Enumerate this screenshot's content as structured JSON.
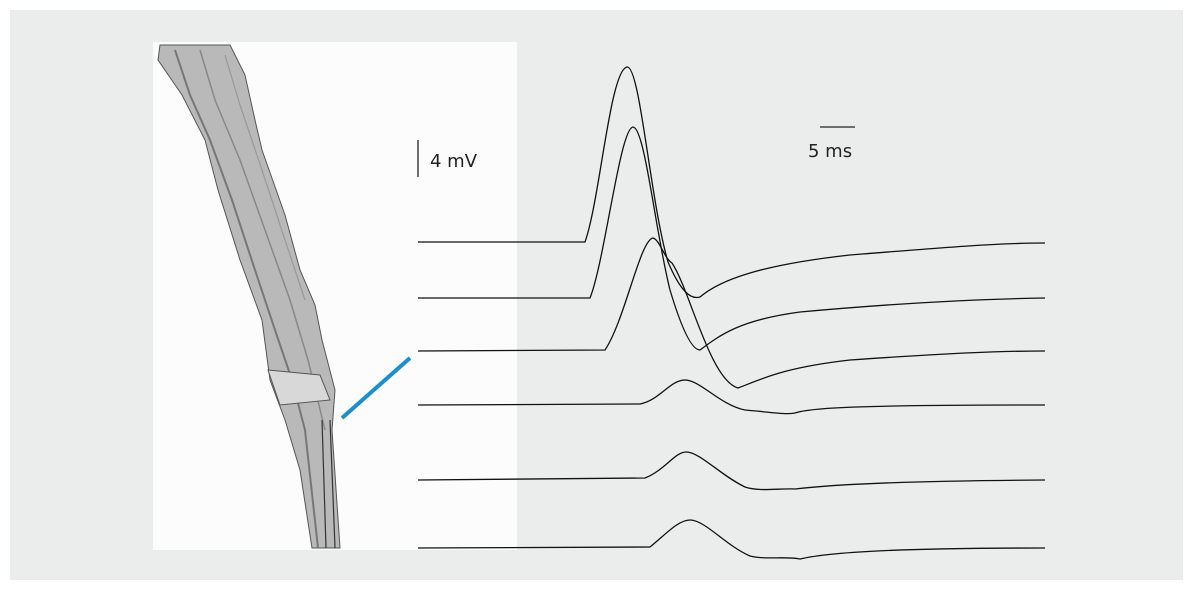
{
  "scale_bars": {
    "voltage": "4 mV",
    "time": "5 ms"
  }
}
